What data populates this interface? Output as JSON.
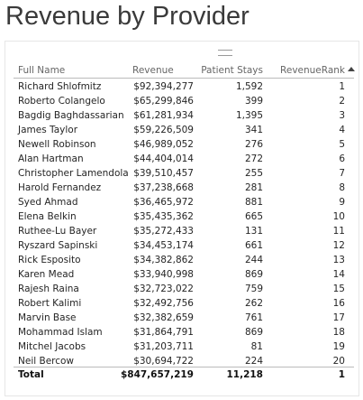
{
  "header": {
    "title": "Revenue by Provider"
  },
  "table": {
    "columns": [
      "Full Name",
      "Revenue",
      "Patient Stays",
      "RevenueRank"
    ],
    "rows": [
      [
        "Richard Shlofmitz",
        "$92,394,277",
        "1,592",
        "1"
      ],
      [
        "Roberto Colangelo",
        "$65,299,846",
        "399",
        "2"
      ],
      [
        "Bagdig Baghdassarian",
        "$61,281,934",
        "1,395",
        "3"
      ],
      [
        "James Taylor",
        "$59,226,509",
        "341",
        "4"
      ],
      [
        "Newell Robinson",
        "$46,989,052",
        "276",
        "5"
      ],
      [
        "Alan Hartman",
        "$44,404,014",
        "272",
        "6"
      ],
      [
        "Christopher Lamendola",
        "$39,510,457",
        "255",
        "7"
      ],
      [
        "Harold Fernandez",
        "$37,238,668",
        "281",
        "8"
      ],
      [
        "Syed Ahmad",
        "$36,465,972",
        "881",
        "9"
      ],
      [
        "Elena Belkin",
        "$35,435,362",
        "665",
        "10"
      ],
      [
        "Ruthee-Lu Bayer",
        "$35,272,433",
        "131",
        "11"
      ],
      [
        "Ryszard Sapinski",
        "$34,453,174",
        "661",
        "12"
      ],
      [
        "Rick Esposito",
        "$34,382,862",
        "244",
        "13"
      ],
      [
        "Karen Mead",
        "$33,940,998",
        "869",
        "14"
      ],
      [
        "Rajesh Raina",
        "$32,723,022",
        "759",
        "15"
      ],
      [
        "Robert Kalimi",
        "$32,492,756",
        "262",
        "16"
      ],
      [
        "Marvin Base",
        "$32,382,659",
        "761",
        "17"
      ],
      [
        "Mohammad Islam",
        "$31,864,791",
        "869",
        "18"
      ],
      [
        "Mitchel Jacobs",
        "$31,203,711",
        "81",
        "19"
      ],
      [
        "Neil Bercow",
        "$30,694,722",
        "224",
        "20"
      ]
    ],
    "total": [
      "Total",
      "$847,657,219",
      "11,218",
      "1"
    ]
  }
}
